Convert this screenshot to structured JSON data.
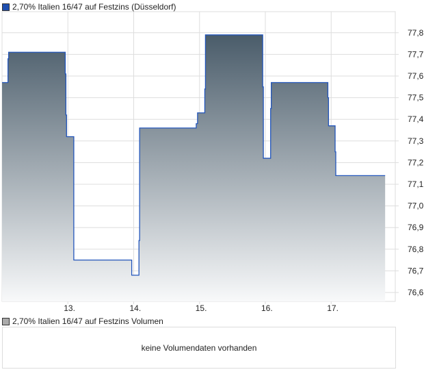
{
  "chart_data": {
    "type": "area",
    "title": "2,70% Italien 16/47 auf Festzins (Düsseldorf)",
    "xlabel": "",
    "ylabel": "",
    "x_ticks": [
      {
        "x": 13,
        "label": "13."
      },
      {
        "x": 14,
        "label": "14."
      },
      {
        "x": 15,
        "label": "15."
      },
      {
        "x": 16,
        "label": "16."
      },
      {
        "x": 17,
        "label": "17."
      }
    ],
    "y_ticks": [
      {
        "v": 76.6,
        "label": "76,6"
      },
      {
        "v": 76.7,
        "label": "76,7"
      },
      {
        "v": 76.8,
        "label": "76,8"
      },
      {
        "v": 76.9,
        "label": "76,9"
      },
      {
        "v": 77.0,
        "label": "77,0"
      },
      {
        "v": 77.1,
        "label": "77,1"
      },
      {
        "v": 77.2,
        "label": "77,2"
      },
      {
        "v": 77.3,
        "label": "77,3"
      },
      {
        "v": 77.4,
        "label": "77,4"
      },
      {
        "v": 77.5,
        "label": "77,5"
      },
      {
        "v": 77.6,
        "label": "77,6"
      },
      {
        "v": 77.7,
        "label": "77,7"
      },
      {
        "v": 77.8,
        "label": "77,8"
      }
    ],
    "xlim": [
      12.0,
      18.0
    ],
    "ylim": [
      76.56,
      77.9
    ],
    "grid": true,
    "step": true,
    "x_end": 17.82,
    "points": [
      [
        12.0,
        77.57
      ],
      [
        12.09,
        77.68
      ],
      [
        12.1,
        77.71
      ],
      [
        12.96,
        77.61
      ],
      [
        12.97,
        77.42
      ],
      [
        12.98,
        77.32
      ],
      [
        13.09,
        76.75
      ],
      [
        13.97,
        76.68
      ],
      [
        14.08,
        76.84
      ],
      [
        14.09,
        77.36
      ],
      [
        14.95,
        77.38
      ],
      [
        14.97,
        77.43
      ],
      [
        15.08,
        77.54
      ],
      [
        15.09,
        77.79
      ],
      [
        15.96,
        77.55
      ],
      [
        15.97,
        77.22
      ],
      [
        16.08,
        77.45
      ],
      [
        16.09,
        77.57
      ],
      [
        16.95,
        77.5
      ],
      [
        16.96,
        77.37
      ],
      [
        17.06,
        77.25
      ],
      [
        17.07,
        77.14
      ]
    ],
    "colors": {
      "line": "#2255bb",
      "fill_top": "#4a5c6a",
      "fill_bottom": "#f8f9fa",
      "grid": "#dddddd",
      "legend_swatch": "#1f4fb0"
    }
  },
  "volume": {
    "title": "2,70% Italien 16/47 auf Festzins Volumen",
    "message": "keine Volumendaten vorhanden",
    "swatch": "#aaaaaa"
  }
}
